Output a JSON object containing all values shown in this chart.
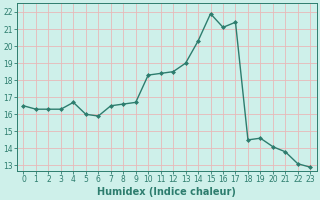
{
  "x": [
    0,
    1,
    2,
    3,
    4,
    5,
    6,
    7,
    8,
    9,
    10,
    11,
    12,
    13,
    14,
    15,
    16,
    17,
    18,
    19,
    20,
    21,
    22,
    23
  ],
  "y": [
    16.5,
    16.3,
    16.3,
    16.3,
    16.7,
    16.0,
    15.9,
    16.5,
    16.6,
    16.7,
    18.3,
    18.4,
    18.5,
    19.0,
    20.3,
    21.9,
    21.1,
    21.4,
    14.5,
    14.6,
    14.1,
    13.8,
    13.1,
    12.9
  ],
  "line_color": "#2d7d6e",
  "marker": "D",
  "marker_size": 2.0,
  "bg_color": "#cef0ea",
  "grid_color": "#e8b8b8",
  "xlabel": "Humidex (Indice chaleur)",
  "ylim": [
    12.7,
    22.5
  ],
  "xlim": [
    -0.5,
    23.5
  ],
  "yticks": [
    13,
    14,
    15,
    16,
    17,
    18,
    19,
    20,
    21,
    22
  ],
  "xticks": [
    0,
    1,
    2,
    3,
    4,
    5,
    6,
    7,
    8,
    9,
    10,
    11,
    12,
    13,
    14,
    15,
    16,
    17,
    18,
    19,
    20,
    21,
    22,
    23
  ],
  "tick_label_fontsize": 5.5,
  "xlabel_fontsize": 7.0,
  "line_width": 1.0
}
